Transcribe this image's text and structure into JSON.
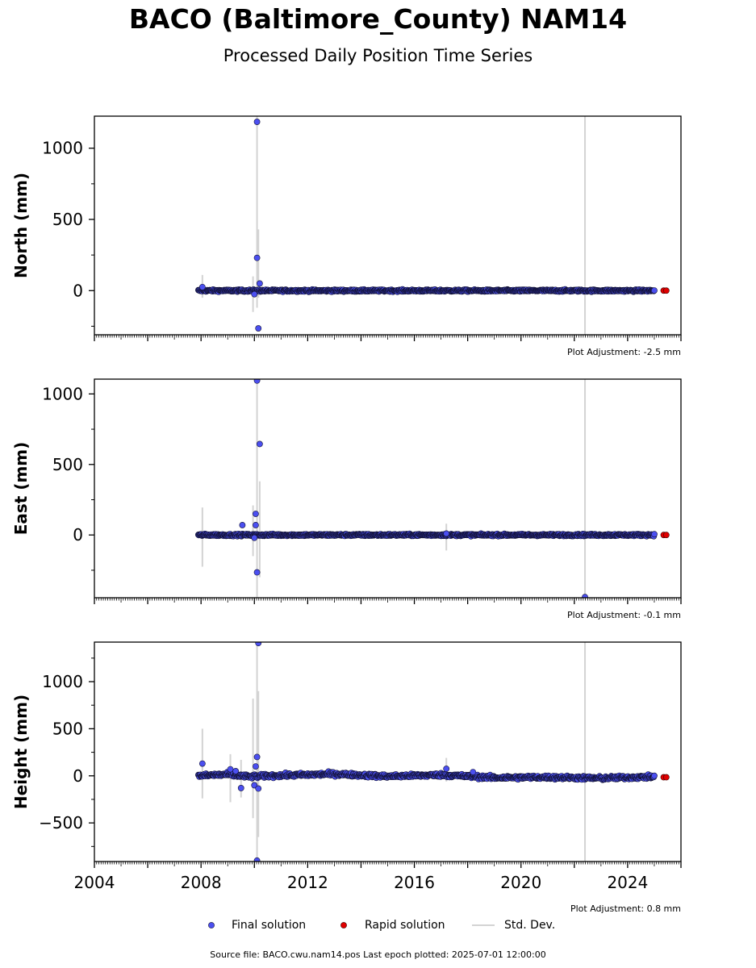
{
  "title": "BACO (Baltimore_County) NAM14",
  "subtitle": "Processed Daily Position Time Series",
  "source": "Source file: BACO.cwu.nam14.pos  Last epoch plotted: 2025-07-01 12:00:00",
  "legend": {
    "final": "Final solution",
    "rapid": "Rapid solution",
    "std": "Std. Dev."
  },
  "colors": {
    "final": "#4b4ff0",
    "rapid": "#e00000",
    "std": "#d3d3d3"
  },
  "chart_data": [
    {
      "type": "scatter",
      "ylabel": "North (mm)",
      "adjustment": "Plot Adjustment: -2.5 mm",
      "xlim": [
        2004,
        2026
      ],
      "ylim": [
        -310,
        1225
      ],
      "yticks": [
        0,
        500,
        1000
      ],
      "yticklabels": [
        "0",
        "500",
        "1000"
      ],
      "baseline": [
        [
          2007.9,
          0
        ],
        [
          2025.0,
          0
        ]
      ],
      "noise": 5,
      "outliers": [
        {
          "x": 2010.1,
          "y": 1185
        },
        {
          "x": 2010.1,
          "y": 230
        },
        {
          "x": 2010.2,
          "y": 50
        },
        {
          "x": 2010.15,
          "y": -265
        },
        {
          "x": 2008.05,
          "y": 25
        },
        {
          "x": 2010.0,
          "y": -25
        }
      ],
      "errorbars": [
        {
          "x": 2008.05,
          "lo": -50,
          "hi": 110
        },
        {
          "x": 2009.95,
          "lo": -150,
          "hi": 100
        },
        {
          "x": 2010.1,
          "lo": -120,
          "hi": 1230
        },
        {
          "x": 2010.15,
          "lo": -50,
          "hi": 430
        },
        {
          "x": 2022.4,
          "lo": -310,
          "hi": 1225
        }
      ],
      "rapid": [
        {
          "x": 2025.35,
          "y": 0
        },
        {
          "x": 2025.45,
          "y": 0
        }
      ]
    },
    {
      "type": "scatter",
      "ylabel": "East (mm)",
      "adjustment": "Plot Adjustment: -0.1 mm",
      "xlim": [
        2004,
        2026
      ],
      "ylim": [
        -445,
        1105
      ],
      "yticks": [
        0,
        500,
        1000
      ],
      "yticklabels": [
        "0",
        "500",
        "1000"
      ],
      "baseline": [
        [
          2007.9,
          0
        ],
        [
          2025.0,
          0
        ]
      ],
      "noise": 5,
      "outliers": [
        {
          "x": 2010.1,
          "y": 1095
        },
        {
          "x": 2010.2,
          "y": 645
        },
        {
          "x": 2010.05,
          "y": 150
        },
        {
          "x": 2010.05,
          "y": 70
        },
        {
          "x": 2009.55,
          "y": 70
        },
        {
          "x": 2010.1,
          "y": -265
        },
        {
          "x": 2022.4,
          "y": -440
        },
        {
          "x": 2010.0,
          "y": -20
        },
        {
          "x": 2017.2,
          "y": 10
        }
      ],
      "errorbars": [
        {
          "x": 2008.05,
          "lo": -225,
          "hi": 195
        },
        {
          "x": 2009.95,
          "lo": -150,
          "hi": 210
        },
        {
          "x": 2010.1,
          "lo": -445,
          "hi": 1105
        },
        {
          "x": 2010.2,
          "lo": -300,
          "hi": 380
        },
        {
          "x": 2017.2,
          "lo": -110,
          "hi": 80
        },
        {
          "x": 2022.4,
          "lo": -445,
          "hi": 1105
        }
      ],
      "rapid": [
        {
          "x": 2025.35,
          "y": 0
        },
        {
          "x": 2025.45,
          "y": 0
        }
      ]
    },
    {
      "type": "scatter",
      "ylabel": "Height (mm)",
      "adjustment": "Plot Adjustment: 0.8 mm",
      "xaxis_labels": true,
      "xticks": [
        2004,
        2008,
        2012,
        2016,
        2020,
        2024
      ],
      "xticklabels": [
        "2004",
        "2008",
        "2012",
        "2016",
        "2020",
        "2024"
      ],
      "xlim": [
        2004,
        2026
      ],
      "ylim": [
        -910,
        1420
      ],
      "yticks": [
        -500,
        0,
        500,
        1000
      ],
      "yticklabels": [
        "−500",
        "0",
        "500",
        "1000"
      ],
      "baseline": [
        [
          2007.9,
          0
        ],
        [
          2009.0,
          15
        ],
        [
          2009.8,
          -10
        ],
        [
          2010.5,
          0
        ],
        [
          2013.0,
          20
        ],
        [
          2015.0,
          -5
        ],
        [
          2017.0,
          10
        ],
        [
          2019.0,
          -20
        ],
        [
          2021.0,
          -15
        ],
        [
          2023.0,
          -25
        ],
        [
          2025.0,
          -10
        ]
      ],
      "noise": 14,
      "outliers": [
        {
          "x": 2010.15,
          "y": 1410
        },
        {
          "x": 2010.1,
          "y": 200
        },
        {
          "x": 2010.05,
          "y": 100
        },
        {
          "x": 2008.05,
          "y": 130
        },
        {
          "x": 2009.1,
          "y": 70
        },
        {
          "x": 2009.5,
          "y": -130
        },
        {
          "x": 2009.3,
          "y": 50
        },
        {
          "x": 2017.2,
          "y": 75
        },
        {
          "x": 2018.2,
          "y": 40
        },
        {
          "x": 2010.0,
          "y": -100
        },
        {
          "x": 2010.15,
          "y": -135
        },
        {
          "x": 2010.1,
          "y": -900
        }
      ],
      "errorbars": [
        {
          "x": 2008.05,
          "lo": -240,
          "hi": 500
        },
        {
          "x": 2009.1,
          "lo": -280,
          "hi": 230
        },
        {
          "x": 2009.5,
          "lo": -230,
          "hi": 170
        },
        {
          "x": 2009.95,
          "lo": -450,
          "hi": 820
        },
        {
          "x": 2010.1,
          "lo": -910,
          "hi": 1420
        },
        {
          "x": 2010.15,
          "lo": -650,
          "hi": 900
        },
        {
          "x": 2017.2,
          "lo": -60,
          "hi": 190
        },
        {
          "x": 2022.4,
          "lo": -910,
          "hi": 1420
        }
      ],
      "rapid": [
        {
          "x": 2025.35,
          "y": -15
        },
        {
          "x": 2025.45,
          "y": -15
        }
      ]
    }
  ]
}
